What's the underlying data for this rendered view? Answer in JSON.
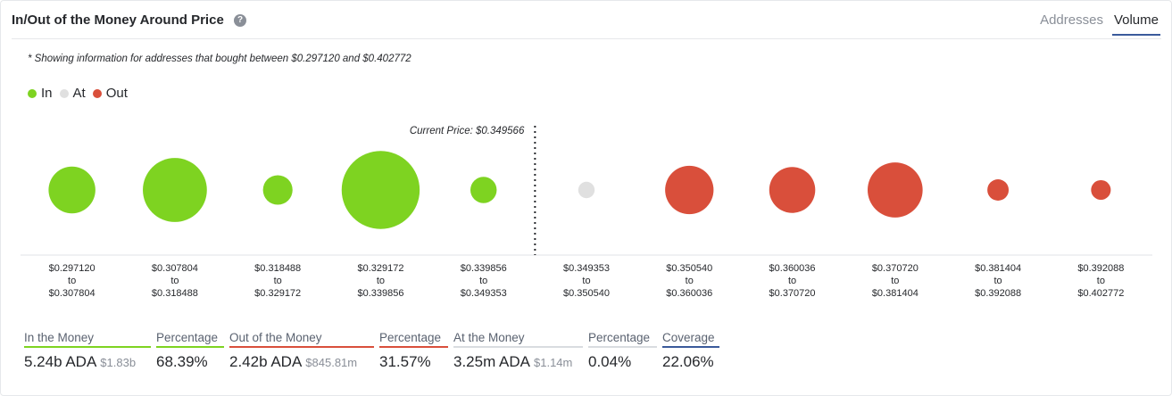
{
  "header": {
    "title": "In/Out of the Money Around Price",
    "help_icon": "question-circle-icon",
    "tabs": [
      {
        "label": "Addresses",
        "active": false
      },
      {
        "label": "Volume",
        "active": true
      }
    ]
  },
  "note": "* Showing information for addresses that bought between $0.297120 and $0.402772",
  "legend": [
    {
      "label": "In",
      "color": "#7ed321"
    },
    {
      "label": "At",
      "color": "#e0e0e0"
    },
    {
      "label": "Out",
      "color": "#d94f3b"
    }
  ],
  "chart_data": {
    "type": "scatter",
    "title": "",
    "current_price_label": "Current Price: $0.349566",
    "current_price_after_index": 4,
    "colors": {
      "in": "#7ed321",
      "at": "#e0e0e0",
      "out": "#d94f3b"
    },
    "buckets": [
      {
        "from": "$0.297120",
        "to": "$0.307804",
        "status": "in",
        "size": 0.57
      },
      {
        "from": "$0.307804",
        "to": "$0.318488",
        "status": "in",
        "size": 0.78
      },
      {
        "from": "$0.318488",
        "to": "$0.329172",
        "status": "in",
        "size": 0.36
      },
      {
        "from": "$0.329172",
        "to": "$0.339856",
        "status": "in",
        "size": 0.95
      },
      {
        "from": "$0.339856",
        "to": "$0.349353",
        "status": "in",
        "size": 0.32
      },
      {
        "from": "$0.349353",
        "to": "$0.350540",
        "status": "at",
        "size": 0.2
      },
      {
        "from": "$0.350540",
        "to": "$0.360036",
        "status": "out",
        "size": 0.59
      },
      {
        "from": "$0.360036",
        "to": "$0.370720",
        "status": "out",
        "size": 0.56
      },
      {
        "from": "$0.370720",
        "to": "$0.381404",
        "status": "out",
        "size": 0.67
      },
      {
        "from": "$0.381404",
        "to": "$0.392088",
        "status": "out",
        "size": 0.26
      },
      {
        "from": "$0.392088",
        "to": "$0.402772",
        "status": "out",
        "size": 0.24
      }
    ],
    "range_separator": "to"
  },
  "stats": [
    {
      "label": "In the Money",
      "value": "5.24b ADA",
      "sub": "$1.83b",
      "color": "#7ed321"
    },
    {
      "label": "Percentage",
      "value": "68.39%",
      "sub": "",
      "color": "#7ed321"
    },
    {
      "label": "Out of the Money",
      "value": "2.42b ADA",
      "sub": "$845.81m",
      "color": "#d94f3b"
    },
    {
      "label": "Percentage",
      "value": "31.57%",
      "sub": "",
      "color": "#d94f3b"
    },
    {
      "label": "At the Money",
      "value": "3.25m ADA",
      "sub": "$1.14m",
      "color": "#d9dce0"
    },
    {
      "label": "Percentage",
      "value": "0.04%",
      "sub": "",
      "color": "#d9dce0"
    },
    {
      "label": "Coverage",
      "value": "22.06%",
      "sub": "",
      "color": "#3a5a9b"
    }
  ]
}
